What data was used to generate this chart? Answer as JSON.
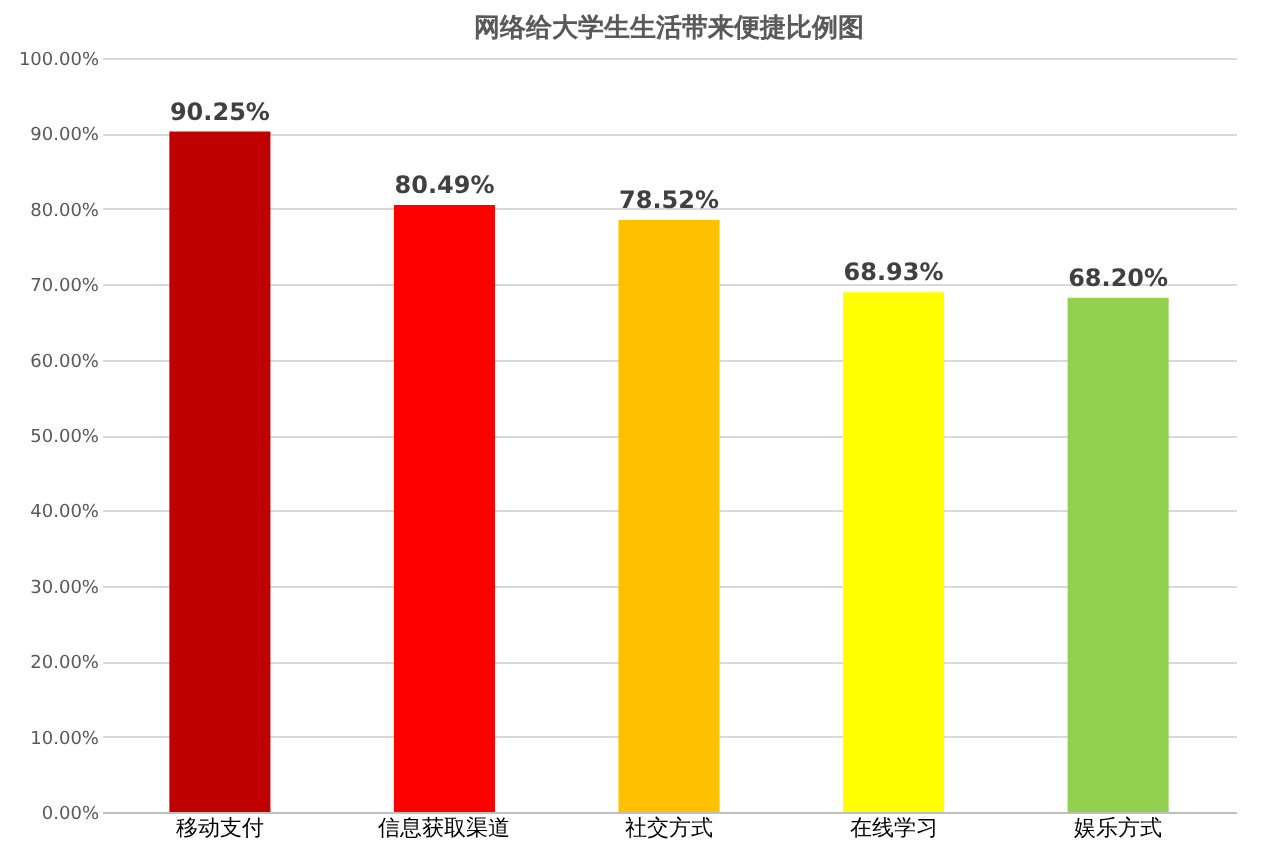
{
  "chart_data": {
    "type": "bar",
    "title": "网络给大学生生活带来便捷比例图",
    "categories": [
      "移动支付",
      "信息获取渠道",
      "社交方式",
      "在线学习",
      "娱乐方式"
    ],
    "values": [
      90.25,
      80.49,
      78.52,
      68.93,
      68.2
    ],
    "value_labels": [
      "90.25%",
      "80.49%",
      "78.52%",
      "68.93%",
      "68.20%"
    ],
    "colors": [
      "#c00000",
      "#ff0000",
      "#ffc000",
      "#ffff00",
      "#92d050"
    ],
    "ylim": [
      0,
      100
    ],
    "yticks": [
      {
        "value": 0,
        "label": "0.00%"
      },
      {
        "value": 10,
        "label": "10.00%"
      },
      {
        "value": 20,
        "label": "20.00%"
      },
      {
        "value": 30,
        "label": "30.00%"
      },
      {
        "value": 40,
        "label": "40.00%"
      },
      {
        "value": 50,
        "label": "50.00%"
      },
      {
        "value": 60,
        "label": "60.00%"
      },
      {
        "value": 70,
        "label": "70.00%"
      },
      {
        "value": 80,
        "label": "80.00%"
      },
      {
        "value": 90,
        "label": "90.00%"
      },
      {
        "value": 100,
        "label": "100.00%"
      }
    ],
    "grid": "y"
  }
}
